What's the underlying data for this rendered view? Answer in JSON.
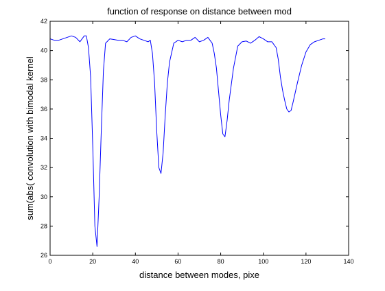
{
  "chart_data": {
    "type": "line",
    "title": "function of response on distance between mod",
    "xlabel": "distance between modes, pixe",
    "ylabel": "sum(abs( convolution with bimodal kernel",
    "xlim": [
      0,
      140
    ],
    "ylim": [
      26,
      42
    ],
    "xticks": [
      0,
      20,
      40,
      60,
      80,
      100,
      120,
      140
    ],
    "yticks": [
      26,
      28,
      30,
      32,
      34,
      36,
      38,
      40,
      42
    ],
    "grid": false,
    "line_color": "#0000ff",
    "series": [
      {
        "x": [
          0,
          2,
          4,
          6,
          8,
          10,
          12,
          14,
          16,
          17,
          18,
          19,
          20,
          21,
          22,
          23,
          24,
          25,
          26,
          28,
          30,
          32,
          34,
          36,
          38,
          40,
          42,
          44,
          46,
          47,
          48,
          49,
          50,
          51,
          52,
          53,
          54,
          55,
          56,
          58,
          60,
          62,
          64,
          66,
          68,
          70,
          72,
          74,
          76,
          77,
          78,
          79,
          80,
          81,
          82,
          83,
          84,
          86,
          88,
          90,
          92,
          94,
          96,
          98,
          100,
          102,
          104,
          106,
          107,
          108,
          109,
          110,
          111,
          112,
          113,
          114,
          116,
          118,
          120,
          122,
          124,
          126,
          128,
          129
        ],
        "y": [
          40.8,
          40.7,
          40.7,
          40.8,
          40.9,
          41.0,
          40.9,
          40.6,
          41.0,
          41.0,
          40.2,
          38.2,
          33.5,
          28.0,
          26.6,
          30.0,
          34.5,
          38.6,
          40.5,
          40.8,
          40.75,
          40.7,
          40.7,
          40.6,
          40.9,
          41.0,
          40.8,
          40.7,
          40.6,
          40.7,
          39.8,
          37.8,
          34.5,
          32.0,
          31.6,
          33.0,
          35.6,
          37.8,
          39.2,
          40.5,
          40.7,
          40.6,
          40.7,
          40.7,
          40.9,
          40.6,
          40.7,
          40.9,
          40.5,
          39.8,
          38.8,
          37.2,
          35.6,
          34.3,
          34.1,
          35.2,
          36.6,
          38.8,
          40.3,
          40.6,
          40.65,
          40.5,
          40.7,
          40.95,
          40.8,
          40.6,
          40.6,
          40.2,
          39.4,
          38.2,
          37.3,
          36.6,
          36.0,
          35.8,
          35.9,
          36.5,
          37.8,
          39.0,
          39.9,
          40.4,
          40.6,
          40.7,
          40.8,
          40.8
        ]
      }
    ]
  }
}
